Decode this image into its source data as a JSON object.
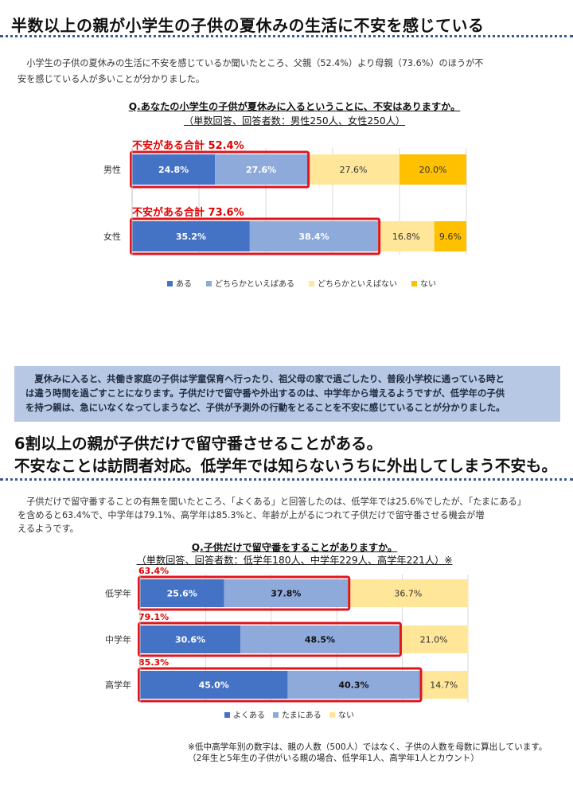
{
  "section1": {
    "heading": "半数以上の親が小学生の子供の夏休みの生活に不安を感じている",
    "intro_line1": "　小学生の子供の夏休みの生活に不安を感じているか聞いたところ、父親（52.4%）より母親（73.6%）のほうが不",
    "intro_line2": "安を感じている人が多いことが分かりました。"
  },
  "callout": {
    "line1": "　夏休みに入ると、共働き家庭の子供は学童保育へ行ったり、祖父母の家で過ごしたり、普段小学校に通っている時と",
    "line2": "は違う時間を過ごすことになります。子供だけで留守番や外出するのは、中学年から増えるようですが、低学年の子供",
    "line3": "を持つ親は、急にいなくなってしまうなど、子供が予測外の行動をとることを不安に感じていることが分かりました。"
  },
  "section2": {
    "heading_line1": "6割以上の親が子供だけで留守番させることがある。",
    "heading_line2": "不安なことは訪問者対応。低学年では知らないうちに外出してしまう不安も。",
    "intro_line1": "　子供だけで留守番することの有無を聞いたところ、「よくある」と回答したのは、低学年では25.6%でしたが、「たまにある」",
    "intro_line2": "を含めると63.4%で、中学年は79.1%、高学年は85.3%と、年齢が上がるにつれて子供だけで留守番させる機会が増",
    "intro_line3": "えるようです。"
  },
  "footnote": {
    "line1": "※低中高学年別の数字は、親の人数（500人）ではなく、子供の人数を母数に算出しています。",
    "line2": "（2年生と5年生の子供がいる親の場合、低学年1人、高学年1人とカウント）"
  },
  "chart_data": [
    {
      "type": "bar",
      "orientation": "horizontal",
      "stacked": true,
      "title": "Q.あなたの小学生の子供が夏休みに入るということに、不安はありますか。",
      "subtitle": "（単数回答、回答者数：男性250人、女性250人）",
      "categories": [
        "男性",
        "女性"
      ],
      "series": [
        {
          "name": "ある",
          "values": [
            24.8,
            35.2
          ],
          "labels": [
            "24.8%",
            "35.2%"
          ],
          "color": "#4472c4",
          "label_color": "#ffffff"
        },
        {
          "name": "どちらかといえばある",
          "values": [
            27.6,
            38.4
          ],
          "labels": [
            "27.6%",
            "38.4%"
          ],
          "color": "#8eaadb",
          "label_color": "#ffffff"
        },
        {
          "name": "どちらかといえばない",
          "values": [
            27.6,
            16.8
          ],
          "labels": [
            "27.6%",
            "16.8%"
          ],
          "color": "#ffe699",
          "label_color": "#333333"
        },
        {
          "name": "ない",
          "values": [
            20.0,
            9.6
          ],
          "labels": [
            "20.0%",
            "9.6%"
          ],
          "color": "#ffc000",
          "label_color": "#333333"
        }
      ],
      "annotations": [
        "不安がある合計 52.4%",
        "不安がある合計 73.6%"
      ],
      "annotation_color": "#e00000",
      "highlight_color": "#e0141e",
      "xlim": [
        0,
        100
      ],
      "grid": true,
      "legend": "bottom"
    },
    {
      "type": "bar",
      "orientation": "horizontal",
      "stacked": true,
      "title": "Q.子供だけで留守番をすることがありますか。",
      "subtitle": "（単数回答、回答者数：低学年180人、中学年229人、高学年221人）※",
      "categories": [
        "低学年",
        "中学年",
        "高学年"
      ],
      "series": [
        {
          "name": "よくある",
          "values": [
            25.6,
            30.6,
            45.0
          ],
          "labels": [
            "25.6%",
            "30.6%",
            "45.0%"
          ],
          "color": "#4472c4",
          "label_color": "#ffffff"
        },
        {
          "name": "たまにある",
          "values": [
            37.8,
            48.5,
            40.3
          ],
          "labels": [
            "37.8%",
            "48.5%",
            "40.3%"
          ],
          "color": "#8eaadb",
          "label_color": "#111111"
        },
        {
          "name": "ない",
          "values": [
            36.7,
            21.0,
            14.7
          ],
          "labels": [
            "36.7%",
            "21.0%",
            "14.7%"
          ],
          "color": "#ffe699",
          "label_color": "#333333"
        }
      ],
      "annotations": [
        "63.4%",
        "79.1%",
        "85.3%"
      ],
      "annotation_color": "#e00000",
      "highlight_color": "#e0141e",
      "xlim": [
        0,
        100
      ],
      "grid": true,
      "legend": "bottom"
    }
  ]
}
